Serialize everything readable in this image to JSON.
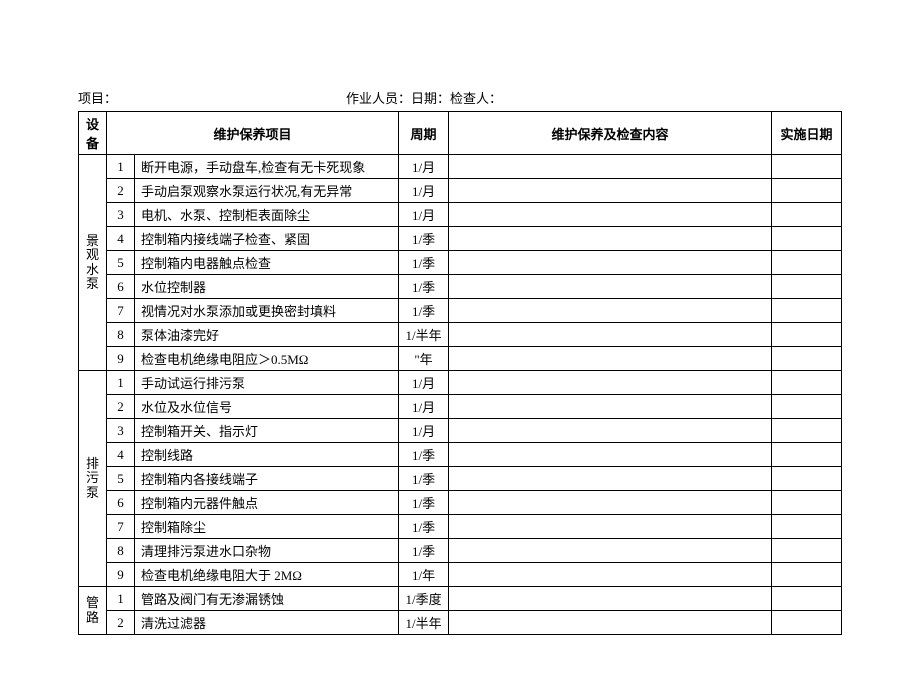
{
  "header": {
    "project_label": "项目：",
    "operator_label": "作业人员：",
    "date_label": "日期：",
    "inspector_label": "检查人："
  },
  "columns": {
    "equipment": "设备",
    "item": "维护保养项目",
    "period": "周期",
    "content": "维护保养及检查内容",
    "date": "实施日期"
  },
  "groups": [
    {
      "name": "景观水泵",
      "rows": [
        {
          "n": "1",
          "item": "断开电源，手动盘车,检查有无卡死现象",
          "period": "1/月"
        },
        {
          "n": "2",
          "item": "手动启泵观察水泵运行状况,有无异常",
          "period": "1/月"
        },
        {
          "n": "3",
          "item": "电机、水泵、控制柜表面除尘",
          "period": "1/月"
        },
        {
          "n": "4",
          "item": "控制箱内接线端子检查、紧固",
          "period": "1/季"
        },
        {
          "n": "5",
          "item": "控制箱内电器触点检查",
          "period": "1/季"
        },
        {
          "n": "6",
          "item": "水位控制器",
          "period": "1/季"
        },
        {
          "n": "7",
          "item": "视情况对水泵添加或更换密封填料",
          "period": "1/季"
        },
        {
          "n": "8",
          "item": "泵体油漆完好",
          "period": "1/半年"
        },
        {
          "n": "9",
          "item": "检查电机绝缘电阻应＞0.5MΩ",
          "period": "\"年"
        }
      ]
    },
    {
      "name": "排污泵",
      "rows": [
        {
          "n": "1",
          "item": "手动试运行排污泵",
          "period": "1/月"
        },
        {
          "n": "2",
          "item": "水位及水位信号",
          "period": "1/月"
        },
        {
          "n": "3",
          "item": "控制箱开关、指示灯",
          "period": "1/月"
        },
        {
          "n": "4",
          "item": "控制线路",
          "period": "1/季"
        },
        {
          "n": "5",
          "item": "控制箱内各接线端子",
          "period": "1/季"
        },
        {
          "n": "6",
          "item": "控制箱内元器件触点",
          "period": "1/季"
        },
        {
          "n": "7",
          "item": "控制箱除尘",
          "period": "1/季"
        },
        {
          "n": "8",
          "item": "清理排污泵进水口杂物",
          "period": "1/季"
        },
        {
          "n": "9",
          "item": "检查电机绝缘电阻大于 2MΩ",
          "period": "1/年"
        }
      ]
    },
    {
      "name": "管路",
      "rows": [
        {
          "n": "1",
          "item": "管路及阀门有无渗漏锈蚀",
          "period": "1/季度"
        },
        {
          "n": "2",
          "item": "清洗过滤器",
          "period": "1/半年"
        }
      ]
    }
  ]
}
